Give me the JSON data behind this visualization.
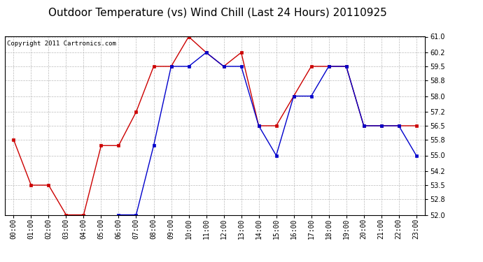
{
  "title": "Outdoor Temperature (vs) Wind Chill (Last 24 Hours) 20110925",
  "copyright": "Copyright 2011 Cartronics.com",
  "x_labels": [
    "00:00",
    "01:00",
    "02:00",
    "03:00",
    "04:00",
    "05:00",
    "06:00",
    "07:00",
    "08:00",
    "09:00",
    "10:00",
    "11:00",
    "12:00",
    "13:00",
    "14:00",
    "15:00",
    "16:00",
    "17:00",
    "18:00",
    "19:00",
    "20:00",
    "21:00",
    "22:00",
    "23:00"
  ],
  "red_y": [
    55.8,
    53.5,
    53.5,
    52.0,
    52.0,
    55.5,
    55.5,
    57.2,
    59.5,
    59.5,
    61.0,
    60.2,
    59.5,
    60.2,
    56.5,
    56.5,
    58.0,
    59.5,
    59.5,
    59.5,
    56.5,
    56.5,
    56.5,
    56.5
  ],
  "blue_y": [
    null,
    null,
    null,
    null,
    null,
    null,
    52.0,
    52.0,
    55.5,
    59.5,
    59.5,
    60.2,
    59.5,
    59.5,
    56.5,
    55.0,
    58.0,
    58.0,
    59.5,
    59.5,
    56.5,
    56.5,
    56.5,
    55.0
  ],
  "ylim_min": 52.0,
  "ylim_max": 61.0,
  "yticks": [
    52.0,
    52.8,
    53.5,
    54.2,
    55.0,
    55.8,
    56.5,
    57.2,
    58.0,
    58.8,
    59.5,
    60.2,
    61.0
  ],
  "red_color": "#cc0000",
  "blue_color": "#0000cc",
  "grid_color": "#bbbbbb",
  "bg_color": "#ffffff",
  "title_fontsize": 11,
  "copyright_fontsize": 6.5,
  "tick_fontsize": 7,
  "marker_size": 3
}
